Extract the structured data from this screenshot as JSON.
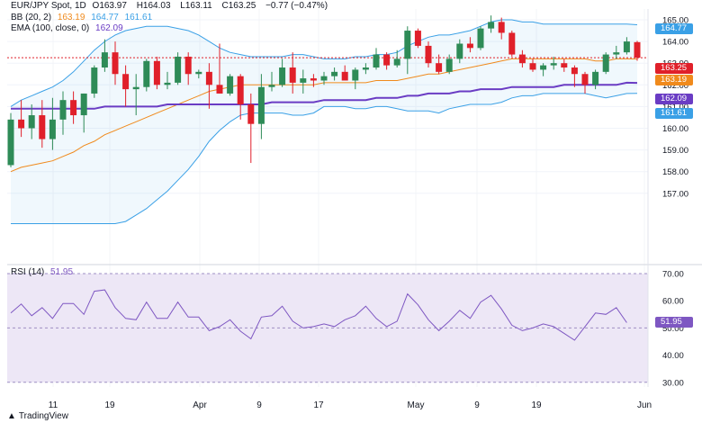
{
  "legend": {
    "symbol": "EUR/JPY Spot, 1D",
    "o_label": "O",
    "o": "163.97",
    "h_label": "H",
    "h": "164.03",
    "l_label": "L",
    "l": "163.11",
    "c_label": "C",
    "c": "163.25",
    "change": "−0.77 (−0.47%)",
    "bb_label": "BB (20, 2)",
    "bb_mid": "163.19",
    "bb_up": "164.77",
    "bb_low": "161.61",
    "ema_label": "EMA (100, close, 0)",
    "ema": "162.09",
    "rsi_label": "RSI (14)",
    "rsi": "51.95"
  },
  "tags": {
    "upper": "164.77",
    "close": "163.25",
    "mid": "163.19",
    "ema": "162.09",
    "lower": "161.61",
    "rsi": "51.95"
  },
  "brand": "TradingView",
  "colors": {
    "up": "#2e8b57",
    "down": "#e0202a",
    "bb_band": "#3aa0e6",
    "bb_mid": "#f08a1c",
    "ema": "#6a3cc4",
    "rsi_line": "#7e57c2",
    "rsi_fill": "#ede7f6",
    "close_tag": "#e0202a"
  },
  "chart_data": [
    {
      "type": "candlestick",
      "title": "EUR/JPY Spot, 1D",
      "ylim": [
        155.6,
        165.3
      ],
      "yticks": [
        "165.00",
        "164.00",
        "163.00",
        "162.00",
        "161.00",
        "160.00",
        "159.00",
        "158.00",
        "157.00"
      ],
      "xticks": [
        "11",
        "19",
        "Apr",
        "9",
        "17",
        "May",
        "9",
        "19",
        "Jun"
      ],
      "candles": [
        {
          "o": 158.3,
          "h": 160.7,
          "l": 158.2,
          "c": 160.4
        },
        {
          "o": 160.4,
          "h": 161.3,
          "l": 159.6,
          "c": 160.0
        },
        {
          "o": 160.0,
          "h": 161.1,
          "l": 159.5,
          "c": 160.6
        },
        {
          "o": 160.6,
          "h": 161.3,
          "l": 159.1,
          "c": 159.5
        },
        {
          "o": 159.5,
          "h": 161.4,
          "l": 159.0,
          "c": 160.4
        },
        {
          "o": 160.4,
          "h": 161.7,
          "l": 159.7,
          "c": 161.3
        },
        {
          "o": 161.3,
          "h": 161.7,
          "l": 160.2,
          "c": 160.6
        },
        {
          "o": 160.6,
          "h": 161.6,
          "l": 159.8,
          "c": 161.6
        },
        {
          "o": 161.6,
          "h": 162.9,
          "l": 161.4,
          "c": 162.8
        },
        {
          "o": 162.8,
          "h": 164.1,
          "l": 162.6,
          "c": 163.5
        },
        {
          "o": 163.5,
          "h": 164.0,
          "l": 162.0,
          "c": 162.5
        },
        {
          "o": 162.5,
          "h": 162.9,
          "l": 161.0,
          "c": 161.8
        },
        {
          "o": 161.8,
          "h": 162.5,
          "l": 160.6,
          "c": 161.9
        },
        {
          "o": 161.9,
          "h": 163.2,
          "l": 161.7,
          "c": 163.1
        },
        {
          "o": 163.1,
          "h": 163.3,
          "l": 161.8,
          "c": 162.0
        },
        {
          "o": 162.0,
          "h": 162.6,
          "l": 161.8,
          "c": 162.1
        },
        {
          "o": 162.1,
          "h": 163.5,
          "l": 162.0,
          "c": 163.3
        },
        {
          "o": 163.3,
          "h": 163.5,
          "l": 162.0,
          "c": 162.5
        },
        {
          "o": 162.5,
          "h": 162.7,
          "l": 162.3,
          "c": 162.6
        },
        {
          "o": 162.6,
          "h": 163.0,
          "l": 160.9,
          "c": 162.0
        },
        {
          "o": 162.0,
          "h": 163.9,
          "l": 161.6,
          "c": 161.6
        },
        {
          "o": 161.6,
          "h": 162.5,
          "l": 161.5,
          "c": 162.4
        },
        {
          "o": 162.4,
          "h": 162.5,
          "l": 160.4,
          "c": 161.1
        },
        {
          "o": 161.1,
          "h": 161.6,
          "l": 158.4,
          "c": 160.2
        },
        {
          "o": 160.2,
          "h": 162.5,
          "l": 159.5,
          "c": 161.9
        },
        {
          "o": 161.9,
          "h": 162.6,
          "l": 161.7,
          "c": 162.0
        },
        {
          "o": 162.0,
          "h": 163.2,
          "l": 161.9,
          "c": 162.8
        },
        {
          "o": 162.8,
          "h": 163.5,
          "l": 161.6,
          "c": 162.1
        },
        {
          "o": 162.1,
          "h": 162.7,
          "l": 161.6,
          "c": 162.3
        },
        {
          "o": 162.3,
          "h": 162.5,
          "l": 161.9,
          "c": 162.2
        },
        {
          "o": 162.2,
          "h": 162.6,
          "l": 162.0,
          "c": 162.4
        },
        {
          "o": 162.4,
          "h": 162.8,
          "l": 162.2,
          "c": 162.6
        },
        {
          "o": 162.6,
          "h": 162.9,
          "l": 162.2,
          "c": 162.2
        },
        {
          "o": 162.2,
          "h": 162.8,
          "l": 161.8,
          "c": 162.7
        },
        {
          "o": 162.7,
          "h": 163.0,
          "l": 162.5,
          "c": 162.8
        },
        {
          "o": 162.8,
          "h": 163.7,
          "l": 162.7,
          "c": 163.4
        },
        {
          "o": 163.4,
          "h": 163.5,
          "l": 162.7,
          "c": 162.9
        },
        {
          "o": 162.9,
          "h": 163.6,
          "l": 162.8,
          "c": 163.2
        },
        {
          "o": 163.2,
          "h": 164.7,
          "l": 162.5,
          "c": 164.5
        },
        {
          "o": 164.5,
          "h": 164.6,
          "l": 163.7,
          "c": 163.8
        },
        {
          "o": 163.8,
          "h": 164.0,
          "l": 162.8,
          "c": 163.0
        },
        {
          "o": 163.0,
          "h": 163.4,
          "l": 162.5,
          "c": 162.6
        },
        {
          "o": 162.6,
          "h": 163.4,
          "l": 162.5,
          "c": 163.2
        },
        {
          "o": 163.2,
          "h": 164.1,
          "l": 163.0,
          "c": 163.9
        },
        {
          "o": 163.9,
          "h": 164.2,
          "l": 163.5,
          "c": 163.7
        },
        {
          "o": 163.7,
          "h": 164.7,
          "l": 163.6,
          "c": 164.6
        },
        {
          "o": 164.6,
          "h": 165.2,
          "l": 164.4,
          "c": 164.9
        },
        {
          "o": 164.9,
          "h": 165.1,
          "l": 164.1,
          "c": 164.4
        },
        {
          "o": 164.4,
          "h": 164.5,
          "l": 163.3,
          "c": 163.4
        },
        {
          "o": 163.4,
          "h": 163.6,
          "l": 162.8,
          "c": 163.0
        },
        {
          "o": 163.0,
          "h": 163.2,
          "l": 162.6,
          "c": 162.7
        },
        {
          "o": 162.7,
          "h": 163.0,
          "l": 162.4,
          "c": 162.9
        },
        {
          "o": 162.9,
          "h": 163.3,
          "l": 162.7,
          "c": 163.0
        },
        {
          "o": 163.0,
          "h": 163.2,
          "l": 162.6,
          "c": 162.8
        },
        {
          "o": 162.8,
          "h": 162.9,
          "l": 161.9,
          "c": 162.5
        },
        {
          "o": 162.5,
          "h": 162.6,
          "l": 161.6,
          "c": 162.0
        },
        {
          "o": 162.0,
          "h": 162.7,
          "l": 161.8,
          "c": 162.6
        },
        {
          "o": 162.6,
          "h": 163.5,
          "l": 162.5,
          "c": 163.4
        },
        {
          "o": 163.4,
          "h": 163.8,
          "l": 163.2,
          "c": 163.5
        },
        {
          "o": 163.5,
          "h": 164.2,
          "l": 163.4,
          "c": 164.0
        },
        {
          "o": 163.97,
          "h": 164.03,
          "l": 163.11,
          "c": 163.25
        }
      ],
      "bb_upper": [
        161.0,
        161.3,
        161.5,
        161.7,
        161.9,
        162.2,
        162.6,
        163.1,
        163.6,
        164.0,
        164.3,
        164.5,
        164.6,
        164.7,
        164.7,
        164.7,
        164.6,
        164.5,
        164.3,
        164.0,
        163.7,
        163.5,
        163.4,
        163.3,
        163.3,
        163.3,
        163.3,
        163.4,
        163.4,
        163.3,
        163.2,
        163.2,
        163.2,
        163.3,
        163.3,
        163.4,
        163.4,
        163.5,
        163.8,
        164.0,
        164.2,
        164.3,
        164.3,
        164.4,
        164.5,
        164.7,
        164.9,
        165.0,
        165.0,
        164.9,
        164.9,
        164.8,
        164.8,
        164.8,
        164.8,
        164.8,
        164.8,
        164.8,
        164.8,
        164.8,
        164.77
      ],
      "bb_mid": [
        158.0,
        158.2,
        158.3,
        158.4,
        158.5,
        158.7,
        158.9,
        159.2,
        159.4,
        159.7,
        159.9,
        160.1,
        160.3,
        160.5,
        160.7,
        160.9,
        161.1,
        161.3,
        161.5,
        161.7,
        161.8,
        161.9,
        162.0,
        162.0,
        162.0,
        162.0,
        162.0,
        162.0,
        162.0,
        162.0,
        162.1,
        162.1,
        162.1,
        162.1,
        162.1,
        162.2,
        162.2,
        162.2,
        162.3,
        162.4,
        162.5,
        162.5,
        162.6,
        162.7,
        162.8,
        162.9,
        163.0,
        163.1,
        163.2,
        163.2,
        163.2,
        163.2,
        163.2,
        163.2,
        163.2,
        163.2,
        163.1,
        163.1,
        163.2,
        163.2,
        163.19
      ],
      "bb_lower": [
        155.0,
        155.1,
        155.1,
        155.1,
        155.1,
        155.2,
        155.2,
        155.3,
        155.2,
        155.4,
        155.5,
        155.7,
        156.0,
        156.3,
        156.7,
        157.1,
        157.6,
        158.1,
        158.7,
        159.4,
        159.9,
        160.3,
        160.6,
        160.7,
        160.7,
        160.7,
        160.7,
        160.6,
        160.6,
        160.7,
        161.0,
        161.0,
        161.0,
        160.9,
        160.9,
        161.0,
        161.0,
        160.9,
        160.8,
        160.8,
        160.8,
        160.7,
        160.9,
        161.0,
        161.1,
        161.1,
        161.1,
        161.2,
        161.4,
        161.5,
        161.5,
        161.6,
        161.6,
        161.6,
        161.6,
        161.6,
        161.5,
        161.4,
        161.5,
        161.6,
        161.61
      ],
      "ema": [
        160.9,
        160.9,
        160.9,
        160.9,
        160.9,
        160.9,
        160.9,
        160.9,
        160.9,
        161.0,
        161.0,
        161.0,
        161.0,
        161.0,
        161.0,
        161.1,
        161.1,
        161.1,
        161.1,
        161.1,
        161.1,
        161.1,
        161.1,
        161.1,
        161.1,
        161.2,
        161.2,
        161.2,
        161.2,
        161.2,
        161.3,
        161.3,
        161.3,
        161.3,
        161.3,
        161.4,
        161.4,
        161.4,
        161.5,
        161.5,
        161.6,
        161.6,
        161.6,
        161.7,
        161.7,
        161.8,
        161.8,
        161.8,
        161.9,
        161.9,
        161.9,
        161.9,
        161.9,
        162.0,
        162.0,
        162.0,
        162.0,
        162.0,
        162.0,
        162.1,
        162.09
      ],
      "rsi": {
        "ylim": [
          30,
          70
        ],
        "levels": [
          70,
          50,
          30
        ],
        "yticks": [
          "70.00",
          "60.00",
          "50.00",
          "40.00",
          "30.00"
        ],
        "values": [
          55.5,
          58.8,
          54.5,
          57.5,
          53.5,
          59.0,
          59.0,
          55.0,
          63.5,
          64.0,
          57.5,
          53.5,
          53.0,
          59.5,
          53.5,
          53.5,
          59.5,
          54.0,
          54.0,
          49.0,
          50.5,
          53.0,
          48.8,
          46.0,
          54.0,
          54.5,
          58.0,
          52.5,
          50.0,
          50.5,
          51.5,
          50.5,
          53.0,
          54.5,
          58.0,
          53.5,
          50.5,
          52.5,
          62.5,
          58.5,
          53.0,
          49.0,
          52.5,
          56.5,
          53.5,
          59.5,
          62.0,
          57.0,
          51.0,
          49.0,
          50.0,
          51.5,
          50.5,
          48.0,
          45.5,
          50.5,
          55.5,
          55.0,
          57.5,
          51.95
        ]
      }
    }
  ]
}
